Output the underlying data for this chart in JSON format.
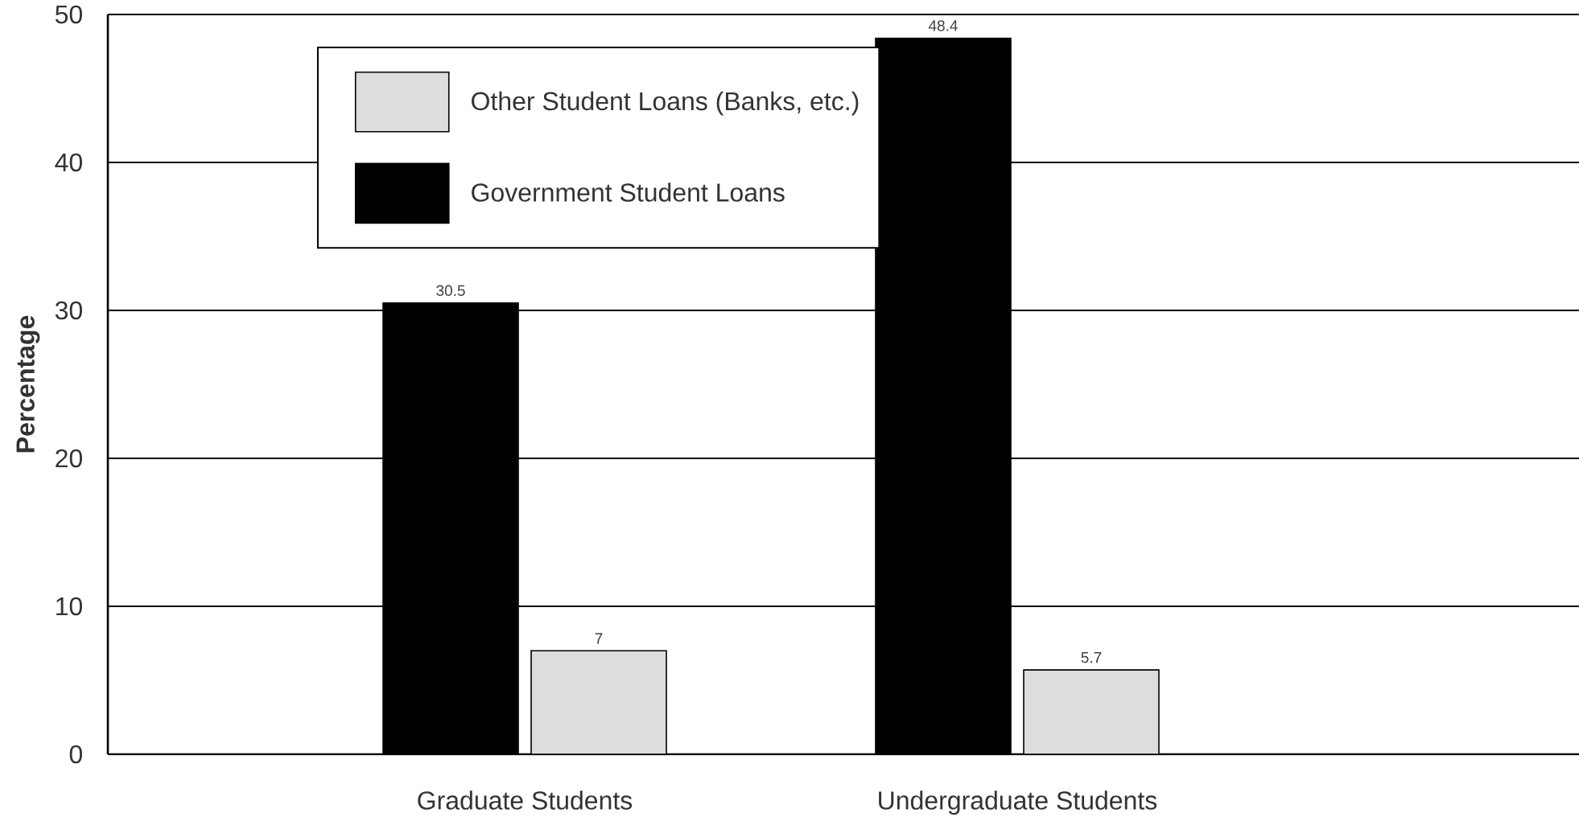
{
  "chart_data": {
    "type": "bar",
    "ylabel": "Percentage",
    "categories": [
      "Graduate Students",
      "Undergraduate Students"
    ],
    "series": [
      {
        "name": "Government Student Loans",
        "color": "#000000",
        "values": [
          30.5,
          48.4
        ]
      },
      {
        "name": "Other Student Loans (Banks, etc.)",
        "color": "#dddddd",
        "values": [
          7,
          5.7
        ]
      }
    ],
    "ylim": [
      0,
      50
    ],
    "yticks": [
      0,
      10,
      20,
      30,
      40,
      50
    ],
    "grid": "y",
    "legend": "top left",
    "data_labels": true
  }
}
